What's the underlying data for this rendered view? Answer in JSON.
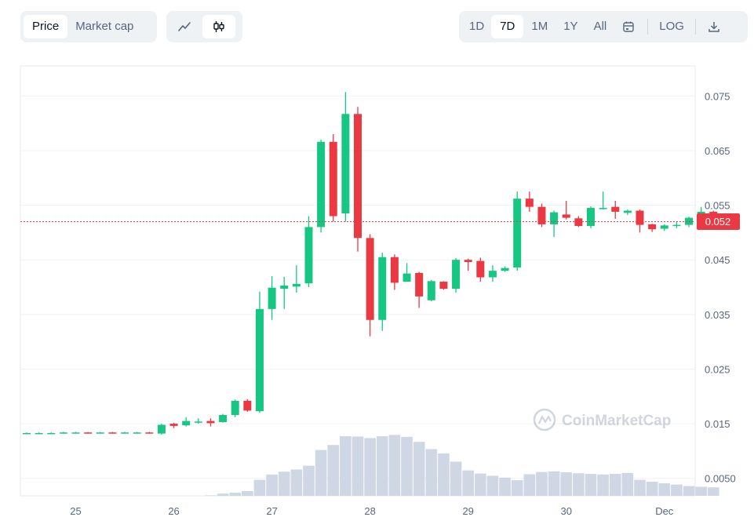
{
  "toolbar": {
    "metric_tabs": [
      {
        "label": "Price",
        "active": true
      },
      {
        "label": "Market cap",
        "active": false
      }
    ],
    "chart_types": [
      {
        "icon": "line-chart-icon",
        "active": false
      },
      {
        "icon": "candlestick-icon",
        "active": true
      }
    ],
    "ranges": [
      {
        "label": "1D",
        "active": false
      },
      {
        "label": "7D",
        "active": true
      },
      {
        "label": "1M",
        "active": false
      },
      {
        "label": "1Y",
        "active": false
      },
      {
        "label": "All",
        "active": false
      }
    ],
    "calendar_icon": "calendar-icon",
    "log_label": "LOG",
    "download_icon": "download-icon"
  },
  "watermark": "CoinMarketCap",
  "colors": {
    "up": "#16c784",
    "down": "#ea3943",
    "volume": "#cfd6e4",
    "current_price_line": "#ea3943"
  },
  "chart_data": {
    "type": "candlestick",
    "current_price": 0.052,
    "current_price_label": "0.052",
    "y_ticks": [
      "0.075",
      "0.065",
      "0.055",
      "0.045",
      "0.035",
      "0.025",
      "0.015",
      "0.0050"
    ],
    "y_tick_values": [
      0.075,
      0.065,
      0.055,
      0.045,
      0.035,
      0.025,
      0.015,
      0.005
    ],
    "ylim": [
      0.0018,
      0.0805
    ],
    "x_ticks": [
      {
        "label": "25",
        "candle": 4
      },
      {
        "label": "26",
        "candle": 12
      },
      {
        "label": "27",
        "candle": 20
      },
      {
        "label": "28",
        "candle": 28
      },
      {
        "label": "29",
        "candle": 36
      },
      {
        "label": "30",
        "candle": 44
      },
      {
        "label": "Dec",
        "candle": 52
      }
    ],
    "candles": [
      [
        0.0133,
        0.0133,
        0.0134,
        0.0131
      ],
      [
        0.0132,
        0.0133,
        0.0134,
        0.0131
      ],
      [
        0.0133,
        0.0133,
        0.0134,
        0.0132
      ],
      [
        0.0133,
        0.0134,
        0.0135,
        0.0132
      ],
      [
        0.0133,
        0.0134,
        0.0135,
        0.0132
      ],
      [
        0.0134,
        0.0133,
        0.0135,
        0.0132
      ],
      [
        0.0133,
        0.0134,
        0.0135,
        0.0132
      ],
      [
        0.0134,
        0.0133,
        0.0135,
        0.0132
      ],
      [
        0.0133,
        0.0134,
        0.0135,
        0.0132
      ],
      [
        0.0133,
        0.0134,
        0.0135,
        0.0132
      ],
      [
        0.0134,
        0.0133,
        0.0135,
        0.0132
      ],
      [
        0.0132,
        0.0148,
        0.015,
        0.013
      ],
      [
        0.015,
        0.0146,
        0.0152,
        0.0142
      ],
      [
        0.0147,
        0.0155,
        0.0162,
        0.0145
      ],
      [
        0.0154,
        0.0154,
        0.016,
        0.015
      ],
      [
        0.0155,
        0.0151,
        0.016,
        0.0145
      ],
      [
        0.0153,
        0.0166,
        0.0168,
        0.0152
      ],
      [
        0.0166,
        0.0192,
        0.0194,
        0.0162
      ],
      [
        0.0192,
        0.0174,
        0.0195,
        0.0172
      ],
      [
        0.0173,
        0.036,
        0.0392,
        0.017
      ],
      [
        0.036,
        0.0399,
        0.042,
        0.034
      ],
      [
        0.0397,
        0.0403,
        0.0419,
        0.036
      ],
      [
        0.0401,
        0.0406,
        0.044,
        0.039
      ],
      [
        0.0407,
        0.051,
        0.053,
        0.04
      ],
      [
        0.051,
        0.0666,
        0.067,
        0.05
      ],
      [
        0.0666,
        0.053,
        0.068,
        0.052
      ],
      [
        0.0535,
        0.0717,
        0.0757,
        0.052
      ],
      [
        0.0717,
        0.049,
        0.073,
        0.0465
      ],
      [
        0.049,
        0.034,
        0.0497,
        0.031
      ],
      [
        0.034,
        0.0455,
        0.0463,
        0.032
      ],
      [
        0.0455,
        0.0408,
        0.046,
        0.0395
      ],
      [
        0.041,
        0.0425,
        0.0444,
        0.041
      ],
      [
        0.0426,
        0.0383,
        0.0428,
        0.0362
      ],
      [
        0.0376,
        0.0411,
        0.0413,
        0.0374
      ],
      [
        0.041,
        0.0397,
        0.0411,
        0.0395
      ],
      [
        0.0397,
        0.045,
        0.0453,
        0.039
      ],
      [
        0.045,
        0.0446,
        0.0452,
        0.043
      ],
      [
        0.0448,
        0.0418,
        0.0454,
        0.041
      ],
      [
        0.0418,
        0.043,
        0.044,
        0.041
      ],
      [
        0.043,
        0.0435,
        0.0438,
        0.0428
      ],
      [
        0.0436,
        0.0562,
        0.0575,
        0.043
      ],
      [
        0.0562,
        0.0547,
        0.0575,
        0.0538
      ],
      [
        0.0547,
        0.0515,
        0.0553,
        0.051
      ],
      [
        0.0515,
        0.0537,
        0.054,
        0.0492
      ],
      [
        0.0533,
        0.0527,
        0.0558,
        0.0524
      ],
      [
        0.0526,
        0.0512,
        0.053,
        0.051
      ],
      [
        0.0512,
        0.0545,
        0.0548,
        0.0508
      ],
      [
        0.0545,
        0.0545,
        0.0575,
        0.0542
      ],
      [
        0.0547,
        0.0538,
        0.0558,
        0.0525
      ],
      [
        0.0536,
        0.054,
        0.0542,
        0.0532
      ],
      [
        0.054,
        0.0514,
        0.0542,
        0.05
      ],
      [
        0.0515,
        0.0506,
        0.0516,
        0.0501
      ],
      [
        0.0507,
        0.0513,
        0.0515,
        0.0503
      ],
      [
        0.0512,
        0.0514,
        0.052,
        0.0508
      ],
      [
        0.0514,
        0.0527,
        0.0529,
        0.051
      ],
      [
        0.0528,
        0.0538,
        0.0547,
        0.0526
      ],
      [
        0.0538,
        0.052,
        0.054,
        0.0518
      ]
    ],
    "volume": [
      0,
      0,
      0,
      0,
      0,
      0,
      0,
      0,
      0,
      0,
      0,
      0,
      0,
      0,
      0,
      0.8,
      3.5,
      5,
      7.5,
      25.5,
      34,
      38.5,
      42,
      48,
      73,
      81,
      95,
      94.5,
      92,
      95,
      97,
      94,
      86,
      74.5,
      67.5,
      54.5,
      40.5,
      35.5,
      32,
      29,
      25,
      34.5,
      38,
      39,
      37.5,
      36,
      35,
      34,
      35,
      36.5,
      25.5,
      22.5,
      20,
      18,
      15.5,
      14.5,
      13.5
    ]
  }
}
